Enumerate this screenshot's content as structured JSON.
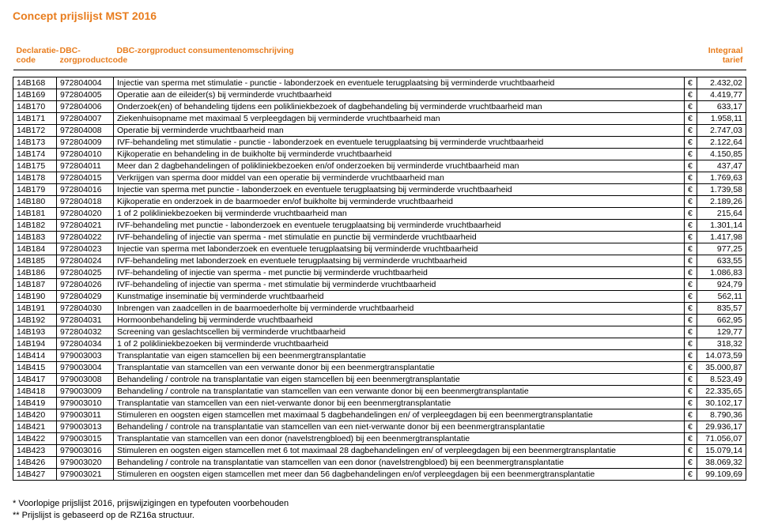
{
  "title": "Concept prijslijst MST 2016",
  "headers": {
    "declaratie": "Declaratie-code",
    "product": "DBC-zorgproductcode",
    "description": "DBC-zorgproduct consumentenomschrijving",
    "tarief": "Integraal tarief"
  },
  "currency": "€",
  "rows": [
    {
      "c": "14B168",
      "p": "972804004",
      "d": "Injectie van sperma met stimulatie - punctie - labonderzoek en eventuele terugplaatsing bij verminderde vruchtbaarheid",
      "v": "2.432,02"
    },
    {
      "c": "14B169",
      "p": "972804005",
      "d": "Operatie aan de eileider(s) bij verminderde vruchtbaarheid",
      "v": "4.419,77"
    },
    {
      "c": "14B170",
      "p": "972804006",
      "d": "Onderzoek(en) of behandeling tijdens een polikliniekbezoek of dagbehandeling bij verminderde vruchtbaarheid man",
      "v": "633,17"
    },
    {
      "c": "14B171",
      "p": "972804007",
      "d": "Ziekenhuisopname met maximaal 5 verpleegdagen bij verminderde vruchtbaarheid man",
      "v": "1.958,11"
    },
    {
      "c": "14B172",
      "p": "972804008",
      "d": "Operatie bij verminderde vruchtbaarheid man",
      "v": "2.747,03"
    },
    {
      "c": "14B173",
      "p": "972804009",
      "d": "IVF-behandeling met stimulatie - punctie - labonderzoek en eventuele terugplaatsing bij verminderde vruchtbaarheid",
      "v": "2.122,64"
    },
    {
      "c": "14B174",
      "p": "972804010",
      "d": "Kijkoperatie en behandeling in de buikholte bij verminderde vruchtbaarheid",
      "v": "4.150,85"
    },
    {
      "c": "14B175",
      "p": "972804011",
      "d": "Meer dan 2 dagbehandelingen of polikliniekbezoeken en/of onderzoeken bij verminderde vruchtbaarheid man",
      "v": "437,47"
    },
    {
      "c": "14B178",
      "p": "972804015",
      "d": "Verkrijgen van sperma door middel van een operatie bij verminderde vruchtbaarheid man",
      "v": "1.769,63"
    },
    {
      "c": "14B179",
      "p": "972804016",
      "d": "Injectie van sperma met punctie - labonderzoek en eventuele terugplaatsing bij verminderde vruchtbaarheid",
      "v": "1.739,58"
    },
    {
      "c": "14B180",
      "p": "972804018",
      "d": "Kijkoperatie en onderzoek in de baarmoeder en/of buikholte bij verminderde vruchtbaarheid",
      "v": "2.189,26"
    },
    {
      "c": "14B181",
      "p": "972804020",
      "d": "1 of 2 polikliniekbezoeken bij verminderde vruchtbaarheid man",
      "v": "215,64"
    },
    {
      "c": "14B182",
      "p": "972804021",
      "d": "IVF-behandeling met punctie - labonderzoek en eventuele terugplaatsing bij verminderde vruchtbaarheid",
      "v": "1.301,14"
    },
    {
      "c": "14B183",
      "p": "972804022",
      "d": "IVF-behandeling of injectie van sperma - met stimulatie en punctie bij verminderde vruchtbaarheid",
      "v": "1.417,98"
    },
    {
      "c": "14B184",
      "p": "972804023",
      "d": "Injectie van sperma met labonderzoek en eventuele terugplaatsing bij verminderde vruchtbaarheid",
      "v": "977,25"
    },
    {
      "c": "14B185",
      "p": "972804024",
      "d": "IVF-behandeling met labonderzoek en eventuele terugplaatsing bij verminderde vruchtbaarheid",
      "v": "633,55"
    },
    {
      "c": "14B186",
      "p": "972804025",
      "d": "IVF-behandeling of injectie van sperma - met punctie bij verminderde vruchtbaarheid",
      "v": "1.086,83"
    },
    {
      "c": "14B187",
      "p": "972804026",
      "d": "IVF-behandeling of injectie van sperma - met stimulatie bij verminderde vruchtbaarheid",
      "v": "924,79"
    },
    {
      "c": "14B190",
      "p": "972804029",
      "d": "Kunstmatige inseminatie bij verminderde vruchtbaarheid",
      "v": "562,11"
    },
    {
      "c": "14B191",
      "p": "972804030",
      "d": "Inbrengen van zaadcellen in de baarmoederholte bij verminderde vruchtbaarheid",
      "v": "835,57"
    },
    {
      "c": "14B192",
      "p": "972804031",
      "d": "Hormoonbehandeling bij verminderde vruchtbaarheid",
      "v": "662,95"
    },
    {
      "c": "14B193",
      "p": "972804032",
      "d": "Screening van geslachtscellen bij verminderde vruchtbaarheid",
      "v": "129,77"
    },
    {
      "c": "14B194",
      "p": "972804034",
      "d": "1 of 2 polikliniekbezoeken bij verminderde vruchtbaarheid",
      "v": "318,32"
    },
    {
      "c": "14B414",
      "p": "979003003",
      "d": "Transplantatie van eigen stamcellen bij een beenmergtransplantatie",
      "v": "14.073,59"
    },
    {
      "c": "14B415",
      "p": "979003004",
      "d": "Transplantatie van stamcellen van een verwante donor bij een beenmergtransplantatie",
      "v": "35.000,87"
    },
    {
      "c": "14B417",
      "p": "979003008",
      "d": "Behandeling / controle na transplantatie van eigen stamcellen bij een beenmergtransplantatie",
      "v": "8.523,49"
    },
    {
      "c": "14B418",
      "p": "979003009",
      "d": "Behandeling / controle na transplantatie van stamcellen van een verwante donor bij een beenmergtransplantatie",
      "v": "22.335,65"
    },
    {
      "c": "14B419",
      "p": "979003010",
      "d": "Transplantatie van stamcellen van een niet-verwante donor bij een beenmergtransplantatie",
      "v": "30.102,17"
    },
    {
      "c": "14B420",
      "p": "979003011",
      "d": "Stimuleren en oogsten eigen stamcellen met maximaal 5 dagbehandelingen en/ of verpleegdagen bij een beenmergtransplantatie",
      "v": "8.790,36"
    },
    {
      "c": "14B421",
      "p": "979003013",
      "d": "Behandeling / controle na transplantatie van stamcellen van een niet-verwante donor bij een beenmergtransplantatie",
      "v": "29.936,17"
    },
    {
      "c": "14B422",
      "p": "979003015",
      "d": "Transplantatie van stamcellen van een donor (navelstrengbloed) bij een beenmergtransplantatie",
      "v": "71.056,07"
    },
    {
      "c": "14B423",
      "p": "979003016",
      "d": "Stimuleren en oogsten eigen stamcellen met 6 tot maximaal 28 dagbehandelingen en/ of verpleegdagen bij een beenmergtransplantatie",
      "v": "15.079,14"
    },
    {
      "c": "14B426",
      "p": "979003020",
      "d": "Behandeling / controle na transplantatie van stamcellen van een donor (navelstrengbloed) bij een beenmergtransplantatie",
      "v": "38.069,32"
    },
    {
      "c": "14B427",
      "p": "979003021",
      "d": "Stimuleren en oogsten eigen stamcellen met meer dan 56 dagbehandelingen en/of verpleegdagen bij een beenmergtransplantatie",
      "v": "99.109,69"
    }
  ],
  "footnotes": [
    "* Voorlopige prijslijst 2016, prijswijzigingen en typefouten voorbehouden",
    "** Prijslijst is gebaseerd op de RZ16a structuur."
  ]
}
